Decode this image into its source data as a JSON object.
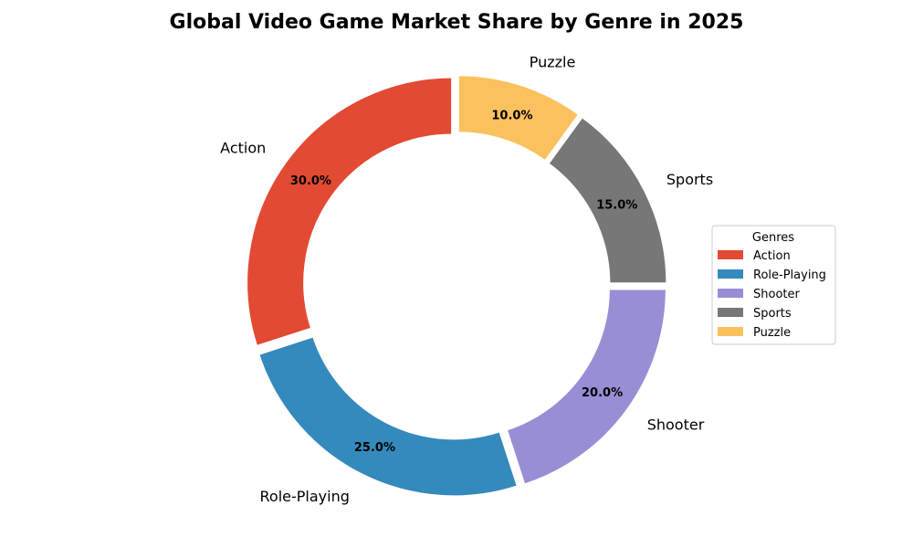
{
  "chart_data": {
    "type": "pie",
    "variant": "donut",
    "title": "Global Video Game Market Share by Genre in 2025",
    "categories": [
      "Action",
      "Role-Playing",
      "Shooter",
      "Sports",
      "Puzzle"
    ],
    "values": [
      30.0,
      25.0,
      20.0,
      15.0,
      10.0
    ],
    "value_labels": [
      "30.0%",
      "25.0%",
      "20.0%",
      "15.0%",
      "10.0%"
    ],
    "colors": [
      "#E24A33",
      "#348ABD",
      "#988ED5",
      "#777777",
      "#FBC15E"
    ],
    "start_angle_deg": 90,
    "direction": "counterclockwise",
    "legend": {
      "title": "Genres",
      "placement": "center-right",
      "entries": [
        "Action",
        "Role-Playing",
        "Shooter",
        "Sports",
        "Puzzle"
      ]
    }
  }
}
